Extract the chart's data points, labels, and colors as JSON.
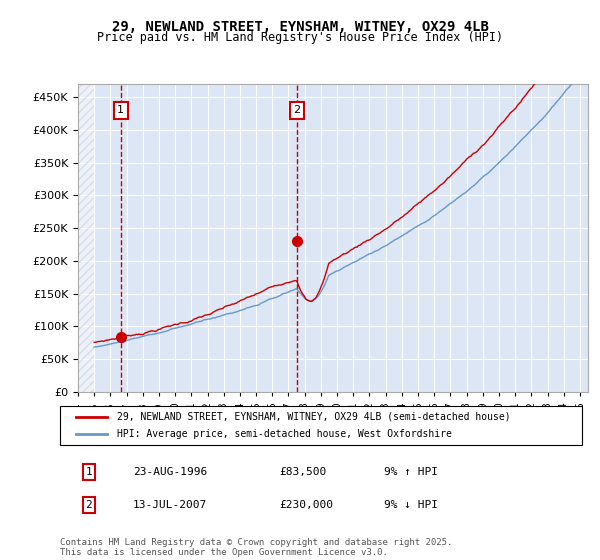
{
  "title": "29, NEWLAND STREET, EYNSHAM, WITNEY, OX29 4LB",
  "subtitle": "Price paid vs. HM Land Registry's House Price Index (HPI)",
  "ylabel_ticks": [
    "£0",
    "£50K",
    "£100K",
    "£150K",
    "£200K",
    "£250K",
    "£300K",
    "£350K",
    "£400K",
    "£450K"
  ],
  "ytick_values": [
    0,
    50000,
    100000,
    150000,
    200000,
    250000,
    300000,
    350000,
    400000,
    450000
  ],
  "ylim": [
    0,
    470000
  ],
  "xlim_start": 1994.0,
  "xlim_end": 2025.5,
  "red_line_label": "29, NEWLAND STREET, EYNSHAM, WITNEY, OX29 4LB (semi-detached house)",
  "blue_line_label": "HPI: Average price, semi-detached house, West Oxfordshire",
  "vline1_x": 1996.64,
  "vline2_x": 2007.53,
  "point1_x": 1996.64,
  "point1_y": 83500,
  "point2_x": 2007.53,
  "point2_y": 230000,
  "marker1_label": "1",
  "marker2_label": "2",
  "table_row1": [
    "1",
    "23-AUG-1996",
    "£83,500",
    "9% ↑ HPI"
  ],
  "table_row2": [
    "2",
    "13-JUL-2007",
    "£230,000",
    "9% ↓ HPI"
  ],
  "footer": "Contains HM Land Registry data © Crown copyright and database right 2025.\nThis data is licensed under the Open Government Licence v3.0.",
  "hatch_color": "#c0c8d8",
  "bg_color": "#dce6f5",
  "plot_bg": "#ffffff",
  "grid_color": "#ffffff",
  "red_color": "#cc0000",
  "blue_color": "#6699cc"
}
